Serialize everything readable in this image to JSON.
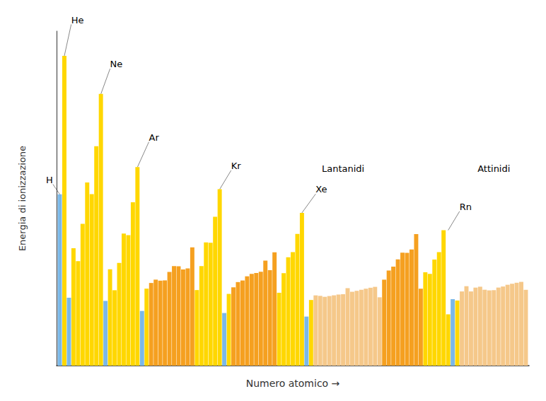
{
  "chart_data": {
    "type": "bar",
    "xlabel": "Numero atomico →",
    "ylabel": "Energia di ionizzazione",
    "x": [
      1,
      2,
      3,
      4,
      5,
      6,
      7,
      8,
      9,
      10,
      11,
      12,
      13,
      14,
      15,
      16,
      17,
      18,
      19,
      20,
      21,
      22,
      23,
      24,
      25,
      26,
      27,
      28,
      29,
      30,
      31,
      32,
      33,
      34,
      35,
      36,
      37,
      38,
      39,
      40,
      41,
      42,
      43,
      44,
      45,
      46,
      47,
      48,
      49,
      50,
      51,
      52,
      53,
      54,
      55,
      56,
      57,
      58,
      59,
      60,
      61,
      62,
      63,
      64,
      65,
      66,
      67,
      68,
      69,
      70,
      71,
      72,
      73,
      74,
      75,
      76,
      77,
      78,
      79,
      80,
      81,
      82,
      83,
      84,
      85,
      86,
      87,
      88,
      89,
      90,
      91,
      92,
      93,
      94,
      95,
      96,
      97,
      98,
      99,
      100,
      101,
      102,
      103
    ],
    "values": [
      13.598,
      24.587,
      5.392,
      9.323,
      8.298,
      11.26,
      14.534,
      13.618,
      17.423,
      21.565,
      5.139,
      7.646,
      5.986,
      8.152,
      10.487,
      10.36,
      12.968,
      15.76,
      4.341,
      6.113,
      6.562,
      6.828,
      6.746,
      6.767,
      7.434,
      7.902,
      7.881,
      7.64,
      7.726,
      9.394,
      5.999,
      7.899,
      9.789,
      9.752,
      11.814,
      14.0,
      4.177,
      5.695,
      6.217,
      6.634,
      6.759,
      7.092,
      7.28,
      7.361,
      7.459,
      8.337,
      7.576,
      8.994,
      5.786,
      7.344,
      8.608,
      9.01,
      10.451,
      12.13,
      3.894,
      5.212,
      5.577,
      5.539,
      5.464,
      5.525,
      5.582,
      5.644,
      5.67,
      6.15,
      5.864,
      5.939,
      6.022,
      6.108,
      6.184,
      6.254,
      5.426,
      6.825,
      7.55,
      7.864,
      8.438,
      8.967,
      8.959,
      9.226,
      10.438,
      6.108,
      7.417,
      7.286,
      8.414,
      9.009,
      10.748,
      4.073,
      5.279,
      5.17,
      5.89,
      6.307,
      5.89,
      6.194,
      6.266,
      6.026,
      5.974,
      5.992,
      6.198,
      6.282,
      6.42,
      6.5,
      6.58,
      6.65,
      6.02
    ],
    "colors": [
      "#7ab8e8",
      "#FFD700",
      "#7ab8e8",
      "#FFD700",
      "#FFD700",
      "#FFD700",
      "#FFD700",
      "#FFD700",
      "#FFD700",
      "#FFD700",
      "#7ab8e8",
      "#FFD700",
      "#FFD700",
      "#FFD700",
      "#FFD700",
      "#FFD700",
      "#FFD700",
      "#FFD700",
      "#7ab8e8",
      "#FFD700",
      "#F5A020",
      "#F5A020",
      "#F5A020",
      "#F5A020",
      "#F5A020",
      "#F5A020",
      "#F5A020",
      "#F5A020",
      "#F5A020",
      "#F5A020",
      "#FFD700",
      "#FFD700",
      "#FFD700",
      "#FFD700",
      "#FFD700",
      "#FFD700",
      "#7ab8e8",
      "#FFD700",
      "#F5A020",
      "#F5A020",
      "#F5A020",
      "#F5A020",
      "#F5A020",
      "#F5A020",
      "#F5A020",
      "#F5A020",
      "#F5A020",
      "#F5A020",
      "#FFD700",
      "#FFD700",
      "#FFD700",
      "#FFD700",
      "#FFD700",
      "#FFD700",
      "#7ab8e8",
      "#FFD700",
      "#F5C88A",
      "#F5C88A",
      "#F5C88A",
      "#F5C88A",
      "#F5C88A",
      "#F5C88A",
      "#F5C88A",
      "#F5C88A",
      "#F5C88A",
      "#F5C88A",
      "#F5C88A",
      "#F5C88A",
      "#F5C88A",
      "#F5C88A",
      "#F5C88A",
      "#F5A020",
      "#F5A020",
      "#F5A020",
      "#F5A020",
      "#F5A020",
      "#F5A020",
      "#F5A020",
      "#F5A020",
      "#F5A020",
      "#FFD700",
      "#FFD700",
      "#FFD700",
      "#FFD700",
      "#FFD700",
      "#FFD700",
      "#7ab8e8",
      "#FFD700",
      "#F5C88A",
      "#F5C88A",
      "#F5C88A",
      "#F5C88A",
      "#F5C88A",
      "#F5C88A",
      "#F5C88A",
      "#F5C88A",
      "#F5C88A",
      "#F5C88A",
      "#F5C88A",
      "#F5C88A",
      "#F5C88A",
      "#F5C88A",
      "#F5C88A"
    ],
    "xlim": [
      0.3,
      103.7
    ],
    "ylim": [
      0,
      26.55396
    ],
    "tick_labels": false,
    "grid": false,
    "annotations": [
      {
        "text": "H",
        "x": 1,
        "y": 13.598,
        "text_x": -0.5,
        "text_y": 14.398
      },
      {
        "text": "He",
        "x": 2,
        "y": 24.587,
        "text_x": 3.5,
        "text_y": 27.087
      },
      {
        "text": "Ne",
        "x": 10,
        "y": 21.565,
        "text_x": 12.0,
        "text_y": 23.565
      },
      {
        "text": "Ar",
        "x": 18,
        "y": 15.76,
        "text_x": 20.5,
        "text_y": 17.76
      },
      {
        "text": "Kr",
        "x": 36,
        "y": 14.0,
        "text_x": 38.5,
        "text_y": 15.5
      },
      {
        "text": "Xe",
        "x": 54,
        "y": 12.13,
        "text_x": 57.0,
        "text_y": 13.63
      },
      {
        "text": "Rn",
        "x": 86,
        "y": 10.748,
        "text_x": 88.5,
        "text_y": 12.248
      }
    ],
    "labels": [
      {
        "text": "Lantanidi",
        "x": 63,
        "y": 15.24394
      },
      {
        "text": "Attinidi",
        "x": 96,
        "y": 15.24394
      }
    ]
  }
}
